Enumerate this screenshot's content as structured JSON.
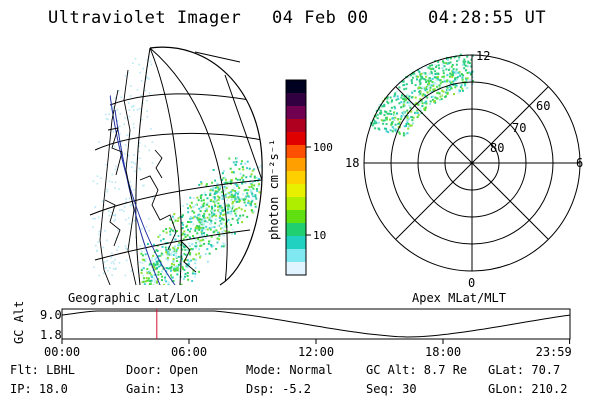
{
  "header": {
    "title": "Ultraviolet Imager",
    "date": "04 Feb 00",
    "time": "04:28:55 UT"
  },
  "left_panel": {
    "label": "Geographic Lat/Lon"
  },
  "right_panel": {
    "label": "Apex MLat/MLT",
    "mlt_labels": {
      "top": "12",
      "left": "18",
      "right": "6",
      "bottom": "0"
    },
    "lat_labels": [
      "60",
      "70",
      "80"
    ]
  },
  "colorbar": {
    "unit_label": "photon cm⁻²s⁻¹",
    "ticks": [
      "100",
      "10"
    ],
    "colors": [
      "#000020",
      "#300040",
      "#700050",
      "#b00020",
      "#e00000",
      "#ff5000",
      "#ffa000",
      "#ffd000",
      "#e8f000",
      "#b0ee00",
      "#60e010",
      "#20d070",
      "#20d0c0",
      "#80e8f0",
      "#e0f4ff"
    ]
  },
  "timeline": {
    "axis_label": "GC Alt",
    "y_ticks": [
      "9.0",
      "1.8"
    ],
    "x_ticks": [
      "00:00",
      "06:00",
      "12:00",
      "18:00",
      "23:59"
    ],
    "marker_time_hours": 4.48,
    "marker_color": "#d01030"
  },
  "info": {
    "filter": "Flt: LBHL",
    "door": "Door: Open",
    "mode": "Mode: Normal",
    "gc_alt": "GC Alt: 8.7 Re",
    "glat": "GLat: 70.7",
    "ip": "IP: 18.0",
    "gain": "Gain: 13",
    "dsp": "Dsp:   -5.2",
    "seq": "Seq: 30",
    "glon": "GLon: 210.2"
  }
}
